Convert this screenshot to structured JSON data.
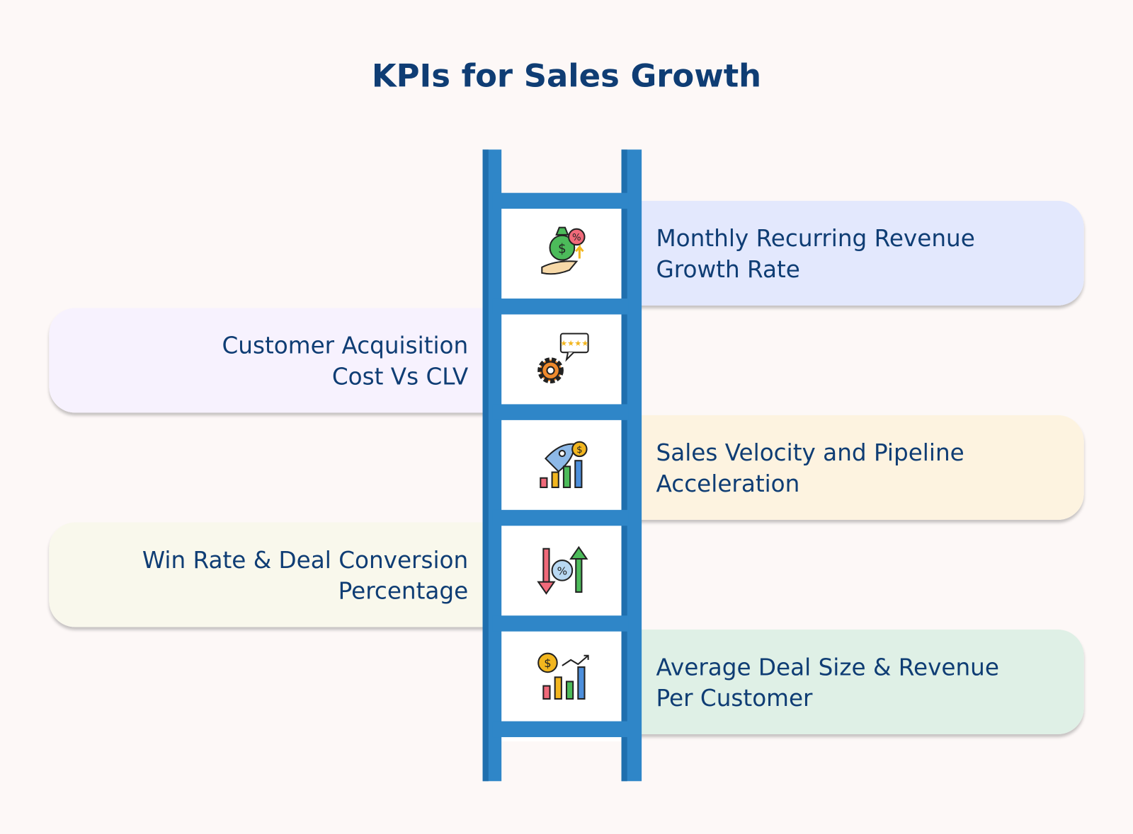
{
  "title": "KPIs for Sales Growth",
  "items": [
    {
      "side": "right",
      "color": "#e3e8fd",
      "lines": [
        "Monthly Recurring Revenue",
        "Growth Rate"
      ]
    },
    {
      "side": "left",
      "color": "#f7f2fe",
      "lines": [
        "Customer Acquisition",
        "Cost Vs CLV"
      ]
    },
    {
      "side": "right",
      "color": "#fdf3e0",
      "lines": [
        "Sales Velocity and Pipeline",
        "Acceleration"
      ]
    },
    {
      "side": "left",
      "color": "#f9f8ec",
      "lines": [
        "Win Rate & Deal Conversion",
        "Percentage"
      ]
    },
    {
      "side": "right",
      "color": "#dff0e6",
      "lines": [
        "Average Deal Size & Revenue",
        "Per Customer"
      ]
    }
  ]
}
